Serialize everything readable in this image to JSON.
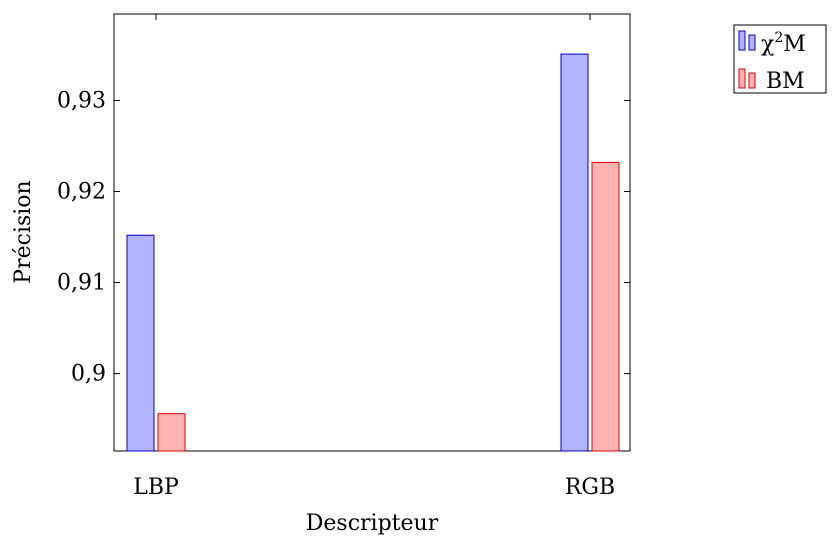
{
  "chart_data": {
    "type": "bar",
    "categories": [
      "LBP",
      "RGB"
    ],
    "series": [
      {
        "name": "χ²M",
        "name_base": "χ",
        "name_sup": "2",
        "name_tail": "M",
        "values": [
          0.9152,
          0.9351
        ],
        "fill": "#b3b3ff",
        "stroke": "#0000cc"
      },
      {
        "name": "BM",
        "values": [
          0.8956,
          0.9232
        ],
        "fill": "#ffb3b3",
        "stroke": "#e00000"
      }
    ],
    "xlabel": "Descripteur",
    "ylabel": "Précision",
    "ylim": [
      0.8915,
      0.9395
    ],
    "yticks": [
      0.9,
      0.91,
      0.92,
      0.93
    ],
    "ytick_labels": [
      "0,9",
      "0,91",
      "0,92",
      "0,93"
    ],
    "grid": false,
    "legend_position": "outside-top-right"
  }
}
